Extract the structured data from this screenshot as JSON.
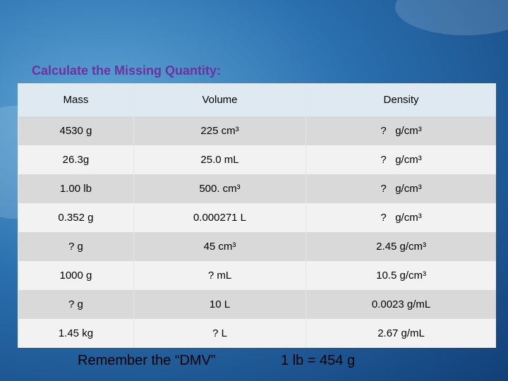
{
  "header": {
    "title": "Calculate the Missing Quantity:"
  },
  "table": {
    "columns": [
      "Mass",
      "Volume",
      "Density"
    ],
    "rows": [
      [
        "4530 g",
        "225 cm³",
        "?   g/cm³"
      ],
      [
        "26.3g",
        "25.0 mL",
        "?   g/cm³"
      ],
      [
        "1.00 lb",
        "500. cm³",
        "?   g/cm³"
      ],
      [
        "0.352 g",
        "0.000271 L",
        "?   g/cm³"
      ],
      [
        "? g",
        "45 cm³",
        "2.45 g/cm³"
      ],
      [
        "1000 g",
        "? mL",
        "10.5 g/cm³"
      ],
      [
        "? g",
        "10 L",
        "0.0023 g/mL"
      ],
      [
        "1.45 kg",
        "? L",
        "2.67 g/mL"
      ]
    ]
  },
  "footer": {
    "note": "Remember the “DMV”",
    "conversion": "1 lb = 454 g"
  }
}
